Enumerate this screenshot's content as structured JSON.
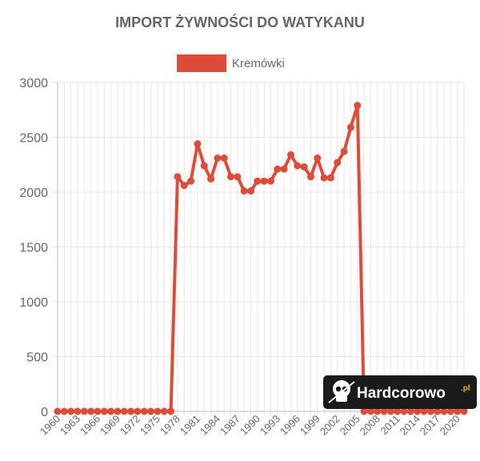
{
  "chart_data": {
    "type": "line",
    "title": "IMPORT ŻYWNOŚCI DO WATYKANU",
    "legend": {
      "position": "top-center"
    },
    "series": [
      {
        "name": "Kremówki",
        "color": "#dd4b39",
        "values": [
          0,
          0,
          0,
          0,
          0,
          0,
          0,
          0,
          0,
          0,
          0,
          0,
          0,
          0,
          0,
          0,
          0,
          0,
          2140,
          2060,
          2100,
          2440,
          2240,
          2120,
          2310,
          2310,
          2140,
          2140,
          2010,
          2010,
          2100,
          2100,
          2100,
          2210,
          2210,
          2340,
          2240,
          2230,
          2140,
          2310,
          2130,
          2130,
          2270,
          2370,
          2590,
          2790,
          0,
          0,
          0,
          0,
          0,
          0,
          0,
          0,
          0,
          0,
          0,
          0,
          0,
          0,
          0,
          0
        ]
      }
    ],
    "x": [
      1960,
      1961,
      1962,
      1963,
      1964,
      1965,
      1966,
      1967,
      1968,
      1969,
      1970,
      1971,
      1972,
      1973,
      1974,
      1975,
      1976,
      1977,
      1978,
      1979,
      1980,
      1981,
      1982,
      1983,
      1984,
      1985,
      1986,
      1987,
      1988,
      1989,
      1990,
      1991,
      1992,
      1993,
      1994,
      1995,
      1996,
      1997,
      1998,
      1999,
      2000,
      2001,
      2002,
      2003,
      2004,
      2005,
      2006,
      2007,
      2008,
      2009,
      2010,
      2011,
      2012,
      2013,
      2014,
      2015,
      2016,
      2017,
      2018,
      2019,
      2020,
      2021
    ],
    "x_tick_labels": [
      "1960",
      "1963",
      "1966",
      "1969",
      "1972",
      "1975",
      "1978",
      "1981",
      "1984",
      "1987",
      "1990",
      "1993",
      "1996",
      "1999",
      "2002",
      "2005",
      "2008",
      "2011",
      "2014",
      "2017",
      "2020"
    ],
    "y_ticks": [
      "0",
      "500",
      "1000",
      "1500",
      "2000",
      "2500",
      "3000"
    ],
    "ylim": [
      0,
      3000
    ],
    "grid": true
  },
  "watermark": {
    "text": "Hardcorowo",
    "suffix": ".pl",
    "icon": "skull-icon"
  }
}
